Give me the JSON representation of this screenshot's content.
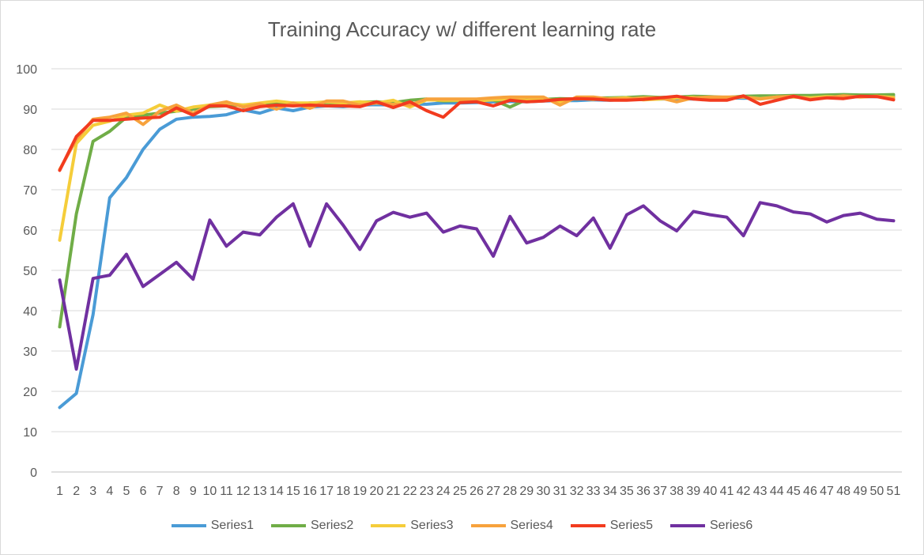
{
  "chart_data": {
    "type": "line",
    "title": "Training Accuracy w/ different learning rate",
    "xlabel": "",
    "ylabel": "",
    "ylim": [
      0,
      100
    ],
    "yticks": [
      0,
      10,
      20,
      30,
      40,
      50,
      60,
      70,
      80,
      90,
      100
    ],
    "x": [
      1,
      2,
      3,
      4,
      5,
      6,
      7,
      8,
      9,
      10,
      11,
      12,
      13,
      14,
      15,
      16,
      17,
      18,
      19,
      20,
      21,
      22,
      23,
      24,
      25,
      26,
      27,
      28,
      29,
      30,
      31,
      32,
      33,
      34,
      35,
      36,
      37,
      38,
      39,
      40,
      41,
      42,
      43,
      44,
      45,
      46,
      47,
      48,
      49,
      50,
      51
    ],
    "grid": true,
    "legend_position": "bottom",
    "series": [
      {
        "name": "Series1",
        "color": "#4a9bd6",
        "values": [
          16,
          19.5,
          39,
          68,
          73,
          80,
          85,
          87.5,
          88,
          88.2,
          88.6,
          89.8,
          89,
          90.3,
          89.6,
          90.5,
          90.8,
          90.6,
          91,
          91.1,
          91,
          91.3,
          91.2,
          91.5,
          91.5,
          91.6,
          91.8,
          91.9,
          91.8,
          92,
          92.1,
          92.1,
          92.3,
          92.2,
          92.4,
          92.4,
          92.5,
          92.6,
          92.5,
          92.7,
          92.8,
          92.7,
          92.8,
          92.9,
          93,
          93,
          93,
          93,
          93.1,
          93.1,
          93.2
        ]
      },
      {
        "name": "Series2",
        "color": "#70ad47",
        "values": [
          36,
          64,
          82,
          84.5,
          88,
          88.5,
          89,
          89.5,
          90,
          90.6,
          90.8,
          91,
          91.2,
          91.3,
          91.1,
          91.5,
          91.6,
          91.4,
          91.7,
          91.8,
          91.6,
          92.2,
          92.5,
          92,
          92.1,
          92.2,
          92.3,
          90.5,
          92.4,
          92.4,
          92.6,
          92.5,
          92.7,
          92.8,
          92.9,
          93.1,
          92.9,
          93,
          93.2,
          93.1,
          92.9,
          93.2,
          93.3,
          93.3,
          93.4,
          93.4,
          93.5,
          93.6,
          93.5,
          93.5,
          93.6
        ]
      },
      {
        "name": "Series3",
        "color": "#f5cd3a",
        "values": [
          57.5,
          81.5,
          86,
          87,
          88.5,
          89,
          91,
          89.5,
          90.5,
          91,
          91.5,
          91,
          91.5,
          92,
          91.5,
          91.5,
          91.8,
          91.5,
          91.8,
          91.5,
          92.2,
          90.5,
          92.3,
          92.2,
          92.2,
          92,
          92.3,
          92.5,
          92.2,
          92.6,
          91.8,
          92.7,
          92.4,
          92.6,
          92.8,
          92.3,
          92.5,
          92.8,
          92.9,
          92.5,
          92.8,
          93,
          92.6,
          93,
          93,
          92.8,
          93.1,
          93,
          93.1,
          93.2,
          92.9
        ]
      },
      {
        "name": "Series4",
        "color": "#f7a23c",
        "values": [
          75,
          82.5,
          87.5,
          88,
          89,
          86.2,
          89.5,
          91,
          89,
          91,
          91.8,
          90.5,
          91.3,
          90,
          91.5,
          90.2,
          92,
          92,
          91,
          91.5,
          91.2,
          91,
          92.5,
          92.5,
          92.5,
          92.5,
          92.8,
          93,
          93,
          93,
          91,
          93,
          93,
          92.5,
          92.5,
          92.8,
          92.8,
          91.8,
          92.8,
          93,
          93,
          93,
          92.5,
          93,
          93.2,
          92.5,
          92.8,
          93.3,
          93,
          93.2,
          92.6
        ]
      },
      {
        "name": "Series5",
        "color": "#f23b1f",
        "values": [
          74.8,
          83.2,
          87.2,
          87.2,
          87.5,
          87.8,
          88,
          90.3,
          88.5,
          90.8,
          90.8,
          89.6,
          90.6,
          91,
          90.8,
          91,
          90.8,
          90.8,
          90.6,
          91.8,
          90.4,
          91.8,
          89.6,
          88,
          91.6,
          91.8,
          90.8,
          92.2,
          91.8,
          92,
          92.4,
          92.6,
          92.5,
          92.2,
          92.2,
          92.4,
          92.8,
          93.2,
          92.5,
          92.2,
          92.2,
          93.3,
          91.2,
          92.2,
          93.2,
          92.3,
          92.8,
          92.6,
          93.2,
          93.1,
          92.3
        ]
      },
      {
        "name": "Series6",
        "color": "#7030a0",
        "values": [
          47.6,
          25.5,
          48,
          48.8,
          54,
          46,
          49,
          52,
          47.8,
          62.5,
          56,
          59.5,
          58.8,
          63.2,
          66.5,
          56,
          66.5,
          61.2,
          55.2,
          62.3,
          64.4,
          63.2,
          64.2,
          59.5,
          61,
          60.3,
          53.5,
          63.4,
          56.8,
          58.2,
          61,
          58.6,
          63,
          55.5,
          63.8,
          66,
          62.3,
          59.8,
          64.6,
          63.8,
          63.2,
          58.6,
          66.8,
          66,
          64.5,
          64,
          62,
          63.6,
          64.2,
          62.7,
          62.3
        ]
      }
    ]
  }
}
